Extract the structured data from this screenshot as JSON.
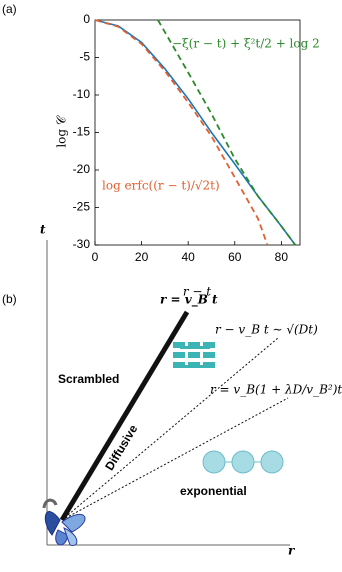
{
  "chart_data": {
    "type": "line",
    "panel_label": "(a)",
    "xlabel": "r − t",
    "ylabel": "log 𝒞",
    "xlim": [
      0,
      88
    ],
    "ylim": [
      -30,
      0
    ],
    "xticks": [
      0,
      20,
      40,
      60,
      80
    ],
    "yticks": [
      0,
      -5,
      -10,
      -15,
      -20,
      -25,
      -30
    ],
    "series": [
      {
        "color": "#1f77b4",
        "x": [
          0,
          10,
          20,
          30,
          40,
          50,
          60,
          70,
          80,
          86
        ],
        "values": [
          0,
          -0.8,
          -3,
          -6.5,
          -10.5,
          -15,
          -19.2,
          -23.5,
          -27.5,
          -30
        ]
      },
      {
        "name": "−ξ(r − t) + ξ²t/2 + log 2",
        "color": "#2a8a2a",
        "dash": true,
        "x": [
          27,
          40,
          50,
          60,
          70,
          80,
          86
        ],
        "values": [
          0,
          -7,
          -12.5,
          -18.5,
          -23.5,
          -27.5,
          -30
        ]
      },
      {
        "name": "log erfc((r − t)/√2t)",
        "color": "#e06030",
        "dash": true,
        "x": [
          0,
          10,
          20,
          30,
          40,
          50,
          60,
          70,
          74
        ],
        "values": [
          0,
          -0.9,
          -3.2,
          -6.8,
          -11,
          -15.5,
          -21,
          -26.5,
          -30
        ]
      }
    ]
  },
  "diagram": {
    "panel_label": "(b)",
    "t_axis": "t",
    "r_axis": "r",
    "line_ballistic": "r = v_B t",
    "line_diffusive": "r − v_B t ∼ √(Dt)",
    "line_exponential": "r = v_B(1 + λD/v_B²)t",
    "region_scrambled": "Scrambled",
    "region_diffusive": "Diffusive",
    "region_exponential": "exponential"
  }
}
